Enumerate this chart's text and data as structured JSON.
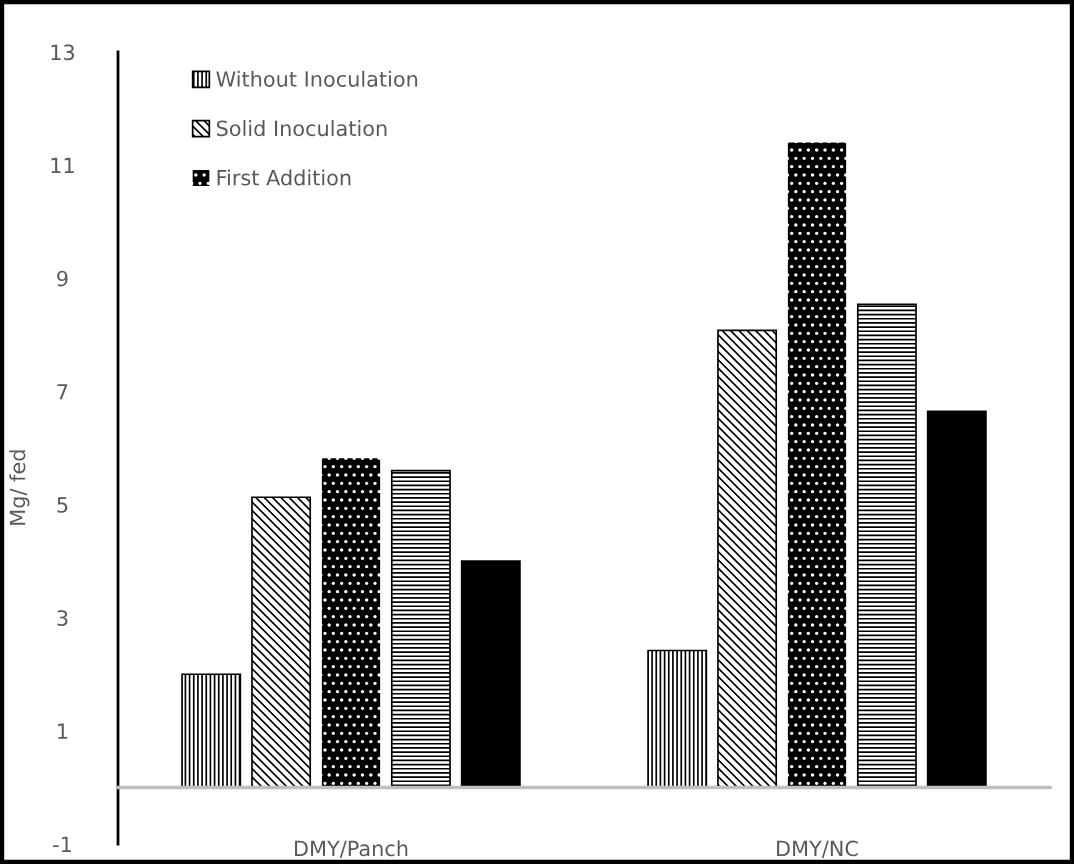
{
  "chart_data": {
    "type": "bar",
    "ylabel": "Mg/ fed",
    "categories": [
      "DMY/Panch",
      "DMY/NC"
    ],
    "series": [
      {
        "name": "Without Inoculation",
        "color": "#000000",
        "values": [
          2.0,
          2.42
        ]
      },
      {
        "name": "Solid Inoculation",
        "color": "#000000",
        "values": [
          5.13,
          8.08
        ]
      },
      {
        "name": "First Addition",
        "color": "#000000",
        "values": [
          5.82,
          11.4
        ]
      },
      {
        "color": "#000000",
        "values": [
          5.6,
          8.54
        ]
      },
      {
        "color": "#000000",
        "values": [
          4.0,
          6.65
        ]
      }
    ],
    "ylim": [
      -1,
      13
    ],
    "yticks": [
      -1,
      1,
      3,
      5,
      7,
      9,
      11,
      13
    ],
    "legend": "top left",
    "grid": false
  }
}
